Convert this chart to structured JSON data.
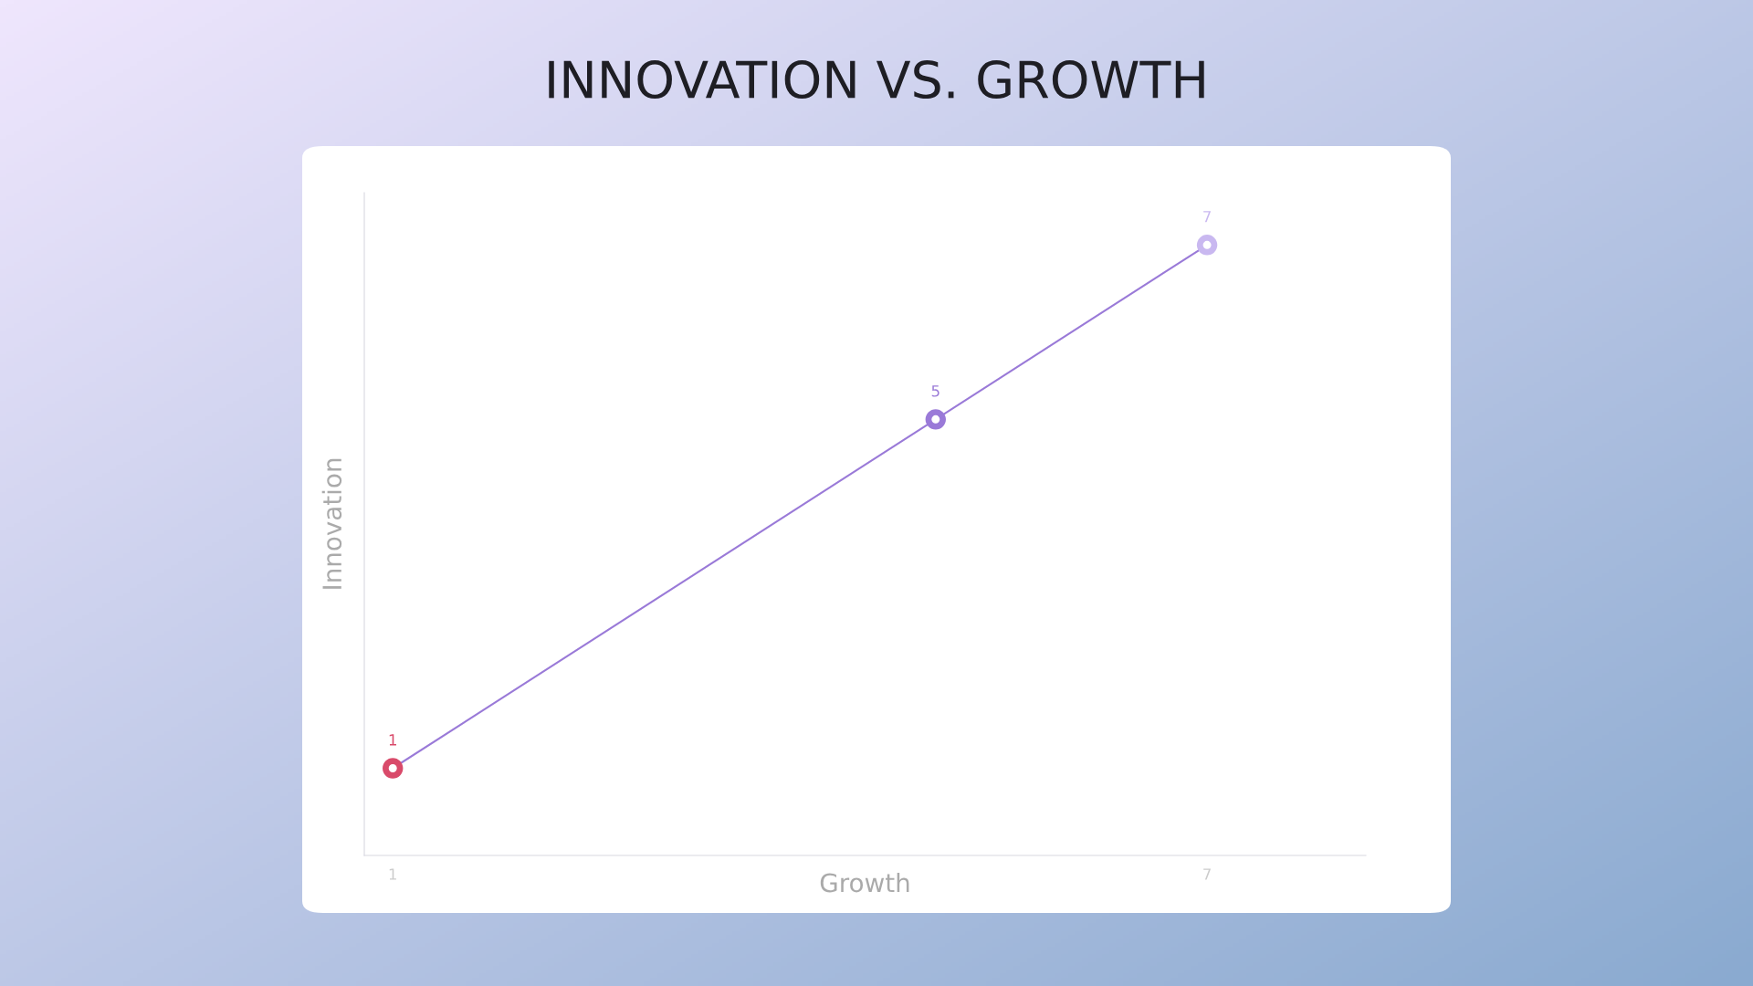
{
  "chart_data": {
    "type": "line",
    "title": "INNOVATION VS. GROWTH",
    "xlabel": "Growth",
    "ylabel": "Innovation",
    "x": [
      1,
      5,
      7
    ],
    "xlim": [
      0.79,
      8.17
    ],
    "ylim": [
      0,
      7.6
    ],
    "tick_labels": "x",
    "xticks": [
      1,
      7
    ],
    "series": [
      {
        "color": "#9a7ad8",
        "colors": [
          "#d94a6a",
          "#9a7ad8",
          "#c9b8f0"
        ],
        "values": [
          1,
          5,
          7
        ]
      }
    ],
    "data_labels": true,
    "marker": "circle",
    "line_style": "solid",
    "grid": false,
    "legend": false
  }
}
